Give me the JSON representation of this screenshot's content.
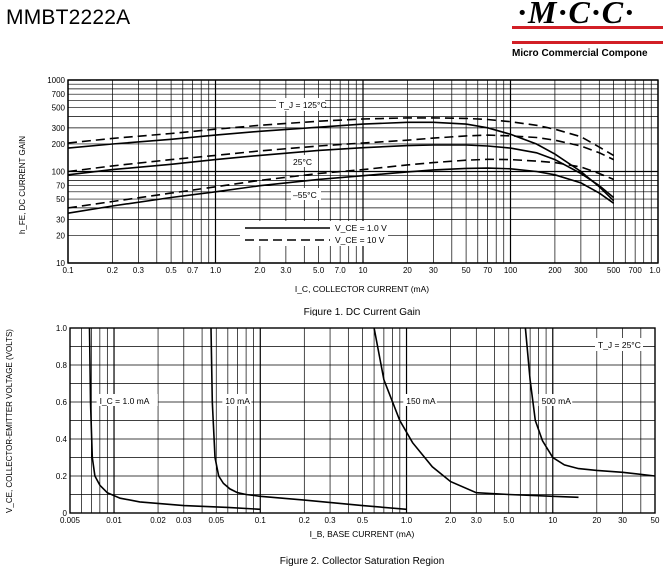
{
  "header": {
    "part_number": "MMBT2222A",
    "logo_mark": "·M·C·C·",
    "logo_text": "Micro Commercial Compone"
  },
  "colors": {
    "brand_red": "#d21f26",
    "grid": "#000000",
    "line": "#000000"
  },
  "chart_data": [
    {
      "type": "line",
      "title": "Figure 1. DC Current Gain",
      "xlabel": "I_C, COLLECTOR CURRENT (mA)",
      "ylabel": "h_FE, DC CURRENT GAIN",
      "xscale": "log",
      "yscale": "log",
      "xlim": [
        0.1,
        1000
      ],
      "ylim": [
        10,
        1000
      ],
      "xticks": [
        "0.1",
        "0.2",
        "0.3",
        "0.5",
        "0.7",
        "1.0",
        "2.0",
        "3.0",
        "5.0",
        "7.0",
        "10",
        "20",
        "30",
        "50",
        "70",
        "100",
        "200",
        "300",
        "500",
        "700",
        "1.0 k"
      ],
      "yticks": [
        "10",
        "20",
        "30",
        "50",
        "70",
        "100",
        "200",
        "300",
        "500",
        "700",
        "1000"
      ],
      "grid": true,
      "legend": {
        "position": "bottom-center",
        "entries": [
          "V_CE = 1.0 V",
          "V_CE = 10 V"
        ]
      },
      "annotations": [
        "T_J = 125°C",
        "25°C",
        "–55°C"
      ],
      "series": [
        {
          "label": "T_J = 125°C",
          "style": "solid",
          "x": [
            0.1,
            0.2,
            0.5,
            1,
            2,
            5,
            10,
            20,
            30,
            50,
            70,
            100,
            150,
            200,
            300,
            400,
            500
          ],
          "y": [
            180,
            200,
            225,
            250,
            275,
            305,
            330,
            345,
            345,
            330,
            300,
            255,
            200,
            155,
            100,
            68,
            48
          ]
        },
        {
          "label": "T_J = 125°C",
          "style": "dashed",
          "x": [
            0.1,
            0.2,
            0.5,
            1,
            2,
            5,
            10,
            20,
            30,
            50,
            70,
            100,
            150,
            200,
            300,
            400,
            500
          ],
          "y": [
            205,
            230,
            260,
            290,
            320,
            355,
            375,
            385,
            385,
            380,
            370,
            350,
            320,
            290,
            240,
            185,
            150
          ]
        },
        {
          "label": "25°C",
          "style": "solid",
          "x": [
            0.1,
            0.2,
            0.5,
            1,
            2,
            5,
            10,
            20,
            30,
            50,
            70,
            100,
            150,
            200,
            300,
            400,
            500
          ],
          "y": [
            92,
            105,
            120,
            135,
            150,
            170,
            182,
            192,
            195,
            195,
            190,
            180,
            160,
            135,
            95,
            70,
            52
          ]
        },
        {
          "label": "25°C",
          "style": "dashed",
          "x": [
            0.1,
            0.2,
            0.5,
            1,
            2,
            5,
            10,
            20,
            30,
            50,
            70,
            100,
            150,
            200,
            300,
            400,
            500
          ],
          "y": [
            100,
            115,
            135,
            150,
            168,
            190,
            205,
            220,
            232,
            245,
            250,
            245,
            235,
            220,
            190,
            160,
            135
          ]
        },
        {
          "label": "–55°C",
          "style": "solid",
          "x": [
            0.1,
            0.2,
            0.5,
            1,
            2,
            5,
            10,
            20,
            30,
            50,
            70,
            100,
            150,
            200,
            300,
            400,
            500
          ],
          "y": [
            35,
            42,
            52,
            60,
            70,
            82,
            90,
            99,
            104,
            108,
            109,
            107,
            100,
            92,
            75,
            58,
            45
          ]
        },
        {
          "label": "–55°C",
          "style": "dashed",
          "x": [
            0.1,
            0.2,
            0.5,
            1,
            2,
            5,
            10,
            20,
            30,
            50,
            70,
            100,
            150,
            200,
            300,
            400,
            500
          ],
          "y": [
            40,
            47,
            58,
            68,
            80,
            95,
            105,
            118,
            125,
            133,
            136,
            135,
            130,
            125,
            112,
            95,
            82
          ]
        }
      ]
    },
    {
      "type": "line",
      "title": "Figure 2. Collector Saturation Region",
      "xlabel": "I_B, BASE CURRENT (mA)",
      "ylabel": "V_CE, COLLECTOR-EMITTER VOLTAGE (VOLTS)",
      "xscale": "log",
      "xlim": [
        0.005,
        50
      ],
      "ylim": [
        0,
        1.0
      ],
      "xticks": [
        "0.005",
        "0.01",
        "0.02",
        "0.03",
        "0.05",
        "0.1",
        "0.2",
        "0.3",
        "0.5",
        "1.0",
        "2.0",
        "3.0",
        "5.0",
        "10",
        "20",
        "30",
        "50"
      ],
      "yticks": [
        "0",
        "0.2",
        "0.4",
        "0.6",
        "0.8",
        "1.0"
      ],
      "grid": true,
      "annotations": [
        "T_J = 25°C"
      ],
      "series": [
        {
          "label": "I_C = 1.0 mA",
          "x": [
            0.0068,
            0.0069,
            0.0071,
            0.0074,
            0.008,
            0.009,
            0.011,
            0.015,
            0.03,
            0.06,
            0.1
          ],
          "y": [
            1.0,
            0.6,
            0.3,
            0.2,
            0.15,
            0.11,
            0.08,
            0.06,
            0.04,
            0.03,
            0.02
          ]
        },
        {
          "label": "10 mA",
          "x": [
            0.046,
            0.047,
            0.049,
            0.052,
            0.056,
            0.062,
            0.07,
            0.08,
            0.1,
            0.2,
            0.5,
            1.0
          ],
          "y": [
            1.0,
            0.6,
            0.3,
            0.2,
            0.16,
            0.13,
            0.11,
            0.1,
            0.09,
            0.07,
            0.04,
            0.02
          ]
        },
        {
          "label": "150 mA",
          "x": [
            0.6,
            0.7,
            0.9,
            1.1,
            1.5,
            2.0,
            3.0,
            5.0,
            10,
            15
          ],
          "y": [
            1.0,
            0.72,
            0.5,
            0.38,
            0.25,
            0.17,
            0.11,
            0.1,
            0.09,
            0.085
          ]
        },
        {
          "label": "500 mA",
          "x": [
            6.5,
            7.0,
            7.6,
            8.5,
            10,
            12,
            15,
            20,
            30,
            50
          ],
          "y": [
            1.0,
            0.72,
            0.5,
            0.39,
            0.3,
            0.26,
            0.24,
            0.23,
            0.22,
            0.2
          ]
        }
      ]
    }
  ]
}
